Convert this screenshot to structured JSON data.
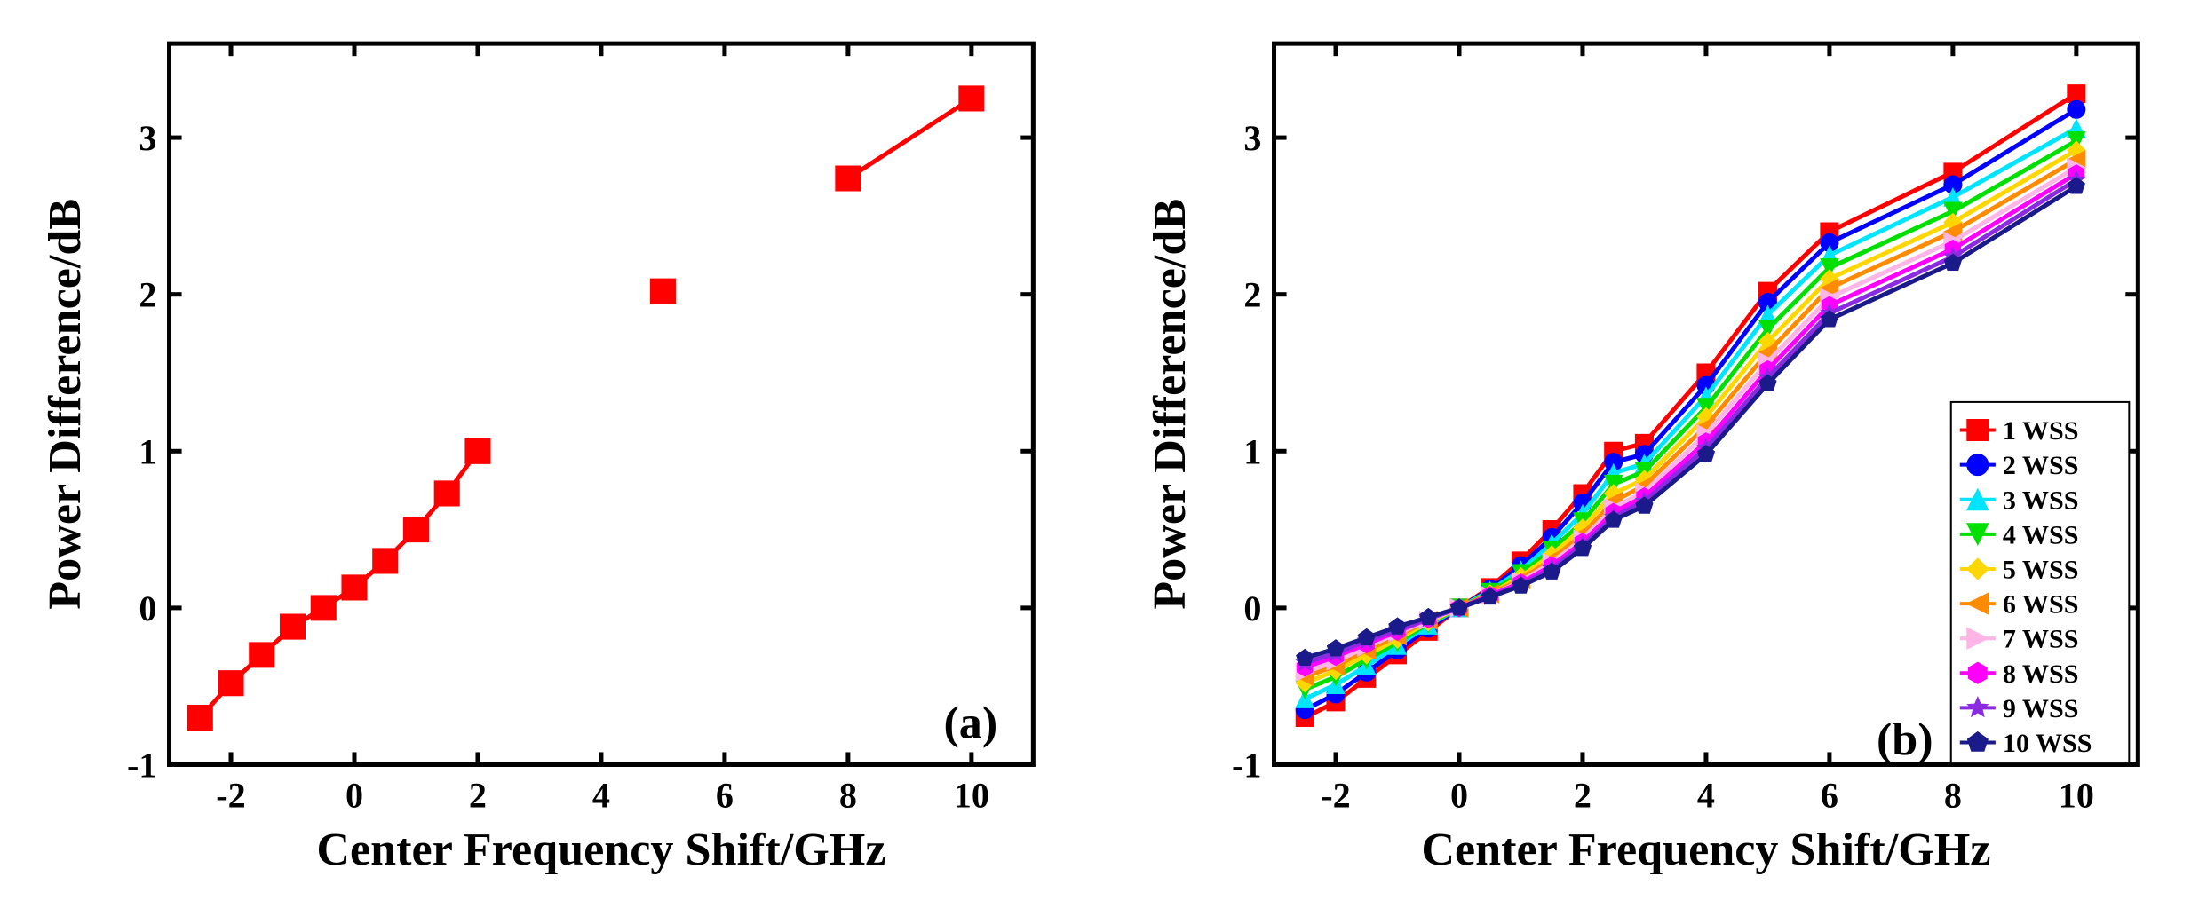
{
  "global": {
    "background_color": "#ffffff",
    "axis_color": "#000000",
    "tick_color": "#000000",
    "tick_fontsize": 40,
    "label_fontsize": 52,
    "panel_label_fontsize": 52,
    "axis_line_width": 5,
    "tick_length": 14,
    "font_family": "Times New Roman, serif"
  },
  "panel_a": {
    "type": "line",
    "panel_label": "(a)",
    "xlabel": "Center Frequency Shift/GHz",
    "ylabel": "Power Difference/dB",
    "xlim": [
      -3,
      11
    ],
    "ylim": [
      -1,
      3.6
    ],
    "xticks": [
      -2,
      0,
      2,
      4,
      6,
      8,
      10
    ],
    "yticks": [
      -1,
      0,
      1,
      2,
      3
    ],
    "series": [
      {
        "name": "1 WSS",
        "color": "#ff0000",
        "line_width": 5,
        "marker": "square",
        "marker_size": 14,
        "x": [
          -2.5,
          -2,
          -1.5,
          -1,
          -0.5,
          0,
          0.5,
          1,
          1.5,
          2,
          2.5,
          3,
          4,
          5,
          6,
          8,
          10
        ],
        "y": [
          -0.7,
          -0.48,
          -0.3,
          -0.12,
          0.0,
          0.13,
          0.3,
          0.5,
          0.73,
          1.0,
          null,
          null,
          null,
          2.02,
          null,
          2.74,
          3.25
        ]
      }
    ]
  },
  "panel_b": {
    "type": "line",
    "panel_label": "(b)",
    "xlabel": "Center Frequency Shift/GHz",
    "ylabel": "Power Difference/dB",
    "xlim": [
      -3,
      11
    ],
    "ylim": [
      -1,
      3.6
    ],
    "xticks": [
      -2,
      0,
      2,
      4,
      6,
      8,
      10
    ],
    "yticks": [
      -1,
      0,
      1,
      2,
      3
    ],
    "legend": {
      "position": "right-mid",
      "fontsize": 30,
      "line_width": 4,
      "marker_size": 12,
      "box_stroke": "#000000",
      "box_fill": "#ffffff"
    },
    "x": [
      -2.5,
      -2,
      -1.5,
      -1,
      -0.5,
      0,
      0.5,
      1,
      1.5,
      2,
      2.5,
      3,
      4,
      5,
      6,
      8,
      10
    ],
    "series": [
      {
        "name": "1 WSS",
        "color": "#ff0000",
        "marker": "square",
        "y": [
          -0.7,
          -0.6,
          -0.45,
          -0.3,
          -0.15,
          0.0,
          0.13,
          0.3,
          0.5,
          0.73,
          1.0,
          1.05,
          1.5,
          2.02,
          2.4,
          2.78,
          3.28
        ]
      },
      {
        "name": "2 WSS",
        "color": "#0000ff",
        "marker": "circle",
        "y": [
          -0.65,
          -0.55,
          -0.41,
          -0.27,
          -0.13,
          0.0,
          0.12,
          0.27,
          0.45,
          0.67,
          0.93,
          0.98,
          1.42,
          1.95,
          2.33,
          2.7,
          3.18
        ]
      },
      {
        "name": "3 WSS",
        "color": "#00e5ff",
        "marker": "triangle-up",
        "y": [
          -0.58,
          -0.49,
          -0.37,
          -0.24,
          -0.11,
          0.0,
          0.11,
          0.24,
          0.41,
          0.6,
          0.86,
          0.92,
          1.35,
          1.87,
          2.25,
          2.62,
          3.06
        ]
      },
      {
        "name": "4 WSS",
        "color": "#00e000",
        "marker": "triangle-down",
        "y": [
          -0.52,
          -0.44,
          -0.33,
          -0.22,
          -0.1,
          0.0,
          0.1,
          0.22,
          0.37,
          0.55,
          0.79,
          0.87,
          1.28,
          1.78,
          2.17,
          2.53,
          2.98
        ]
      },
      {
        "name": "5 WSS",
        "color": "#ffd700",
        "marker": "diamond",
        "y": [
          -0.48,
          -0.4,
          -0.3,
          -0.2,
          -0.09,
          0.0,
          0.09,
          0.2,
          0.34,
          0.51,
          0.73,
          0.82,
          1.22,
          1.7,
          2.1,
          2.46,
          2.92
        ]
      },
      {
        "name": "6 WSS",
        "color": "#ff8c00",
        "marker": "triangle-left",
        "y": [
          -0.44,
          -0.37,
          -0.27,
          -0.18,
          -0.08,
          0.0,
          0.09,
          0.18,
          0.31,
          0.47,
          0.68,
          0.78,
          1.16,
          1.63,
          2.04,
          2.4,
          2.86
        ]
      },
      {
        "name": "7 WSS",
        "color": "#ffb6e6",
        "marker": "triangle-right",
        "y": [
          -0.41,
          -0.34,
          -0.25,
          -0.16,
          -0.08,
          0.0,
          0.08,
          0.17,
          0.29,
          0.44,
          0.64,
          0.74,
          1.11,
          1.57,
          1.98,
          2.34,
          2.81
        ]
      },
      {
        "name": "8 WSS",
        "color": "#ff00ff",
        "marker": "hexagon",
        "y": [
          -0.38,
          -0.31,
          -0.23,
          -0.15,
          -0.07,
          0.0,
          0.08,
          0.16,
          0.27,
          0.42,
          0.61,
          0.71,
          1.06,
          1.52,
          1.93,
          2.29,
          2.77
        ]
      },
      {
        "name": "9 WSS",
        "color": "#8a2be2",
        "marker": "star",
        "y": [
          -0.35,
          -0.29,
          -0.21,
          -0.14,
          -0.07,
          0.0,
          0.07,
          0.15,
          0.25,
          0.4,
          0.58,
          0.68,
          1.02,
          1.47,
          1.88,
          2.24,
          2.73
        ]
      },
      {
        "name": "10 WSS",
        "color": "#1a1a8a",
        "marker": "pentagon",
        "y": [
          -0.32,
          -0.26,
          -0.19,
          -0.12,
          -0.06,
          0.0,
          0.07,
          0.14,
          0.23,
          0.38,
          0.56,
          0.65,
          0.98,
          1.43,
          1.84,
          2.2,
          2.69
        ]
      }
    ]
  }
}
